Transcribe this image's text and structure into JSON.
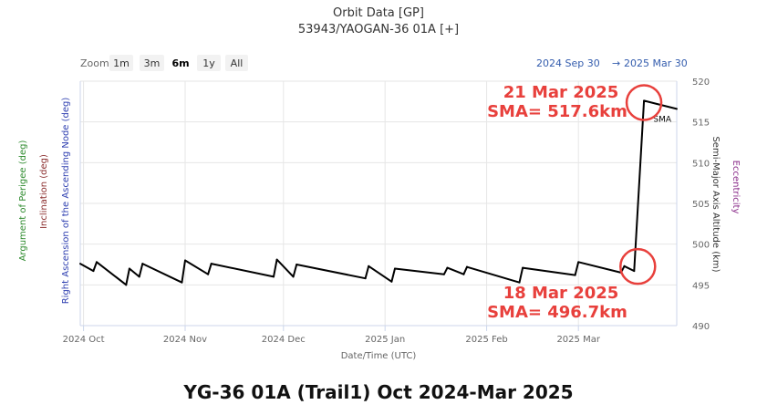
{
  "chart_data": {
    "type": "line",
    "title": "Orbit Data [GP]",
    "subtitle": "53943/YAOGAN-36 01A [+]",
    "zoom": {
      "label": "Zoom",
      "buttons": [
        "1m",
        "3m",
        "6m",
        "1y",
        "All"
      ],
      "selected": "6m"
    },
    "range": {
      "from": "2024 Sep 30",
      "arrow": "→",
      "to": "2025 Mar 30"
    },
    "xlabel": "Date/Time (UTC)",
    "x_ticks": [
      "2024 Oct",
      "2024 Nov",
      "2024 Dec",
      "2025 Jan",
      "2025 Feb",
      "2025 Mar"
    ],
    "xlim": [
      "2024 Sep 30",
      "2025 Mar 31"
    ],
    "ylabel_right": "Semi-Major Axis Altitude (km)",
    "ylim": [
      490,
      520
    ],
    "y_ticks": [
      490,
      495,
      500,
      505,
      510,
      515,
      520
    ],
    "left_axis_titles": [
      {
        "text": "Argument of Perigee (deg)",
        "color": "#2e8b2e"
      },
      {
        "text": "Inclination (deg)",
        "color": "#8b2e2e"
      },
      {
        "text": "Right Ascension of the Ascending Node (deg)",
        "color": "#2e3fb0"
      }
    ],
    "right_axis_titles": [
      {
        "text": "Eccentricity",
        "color": "#8b2e8b"
      }
    ],
    "grid": true,
    "series": [
      {
        "name": "SMA",
        "color": "#000000",
        "x": [
          "2024 Sep 30",
          "2024 Oct 4",
          "2024 Oct 5",
          "2024 Oct 14",
          "2024 Oct 15",
          "2024 Oct 18",
          "2024 Oct 19",
          "2024 Oct 31",
          "2024 Nov 1",
          "2024 Nov 8",
          "2024 Nov 9",
          "2024 Nov 28",
          "2024 Nov 29",
          "2024 Dec 4",
          "2024 Dec 5",
          "2024 Dec 26",
          "2024 Dec 27",
          "2025 Jan 3",
          "2025 Jan 4",
          "2025 Jan 19",
          "2025 Jan 20",
          "2025 Jan 25",
          "2025 Jan 26",
          "2025 Feb 11",
          "2025 Feb 12",
          "2025 Feb 28",
          "2025 Mar 1",
          "2025 Mar 14",
          "2025 Mar 15",
          "2025 Mar 18",
          "2025 Mar 21",
          "2025 Mar 25",
          "2025 Mar 31"
        ],
        "values": [
          497.6,
          496.7,
          497.8,
          495.0,
          497.0,
          496.0,
          497.6,
          495.3,
          498.0,
          496.3,
          497.6,
          496.0,
          498.1,
          496.0,
          497.5,
          495.8,
          497.3,
          495.4,
          497.0,
          496.3,
          497.1,
          496.3,
          497.2,
          495.3,
          497.1,
          496.2,
          497.8,
          496.5,
          497.3,
          496.7,
          517.6,
          517.2,
          516.6
        ]
      }
    ],
    "series_label": "SMA",
    "annotations": [
      {
        "line1": "21 Mar 2025",
        "line2": "SMA= 517.6km",
        "date": "2025 Mar 21",
        "value": 517.6
      },
      {
        "line1": "18 Mar 2025",
        "line2": "SMA= 496.7km",
        "date": "2025 Mar 18",
        "value": 496.7
      }
    ],
    "annotation_color": "#e8403c"
  },
  "caption": "YG-36 01A (Trail1) Oct 2024-Mar 2025"
}
